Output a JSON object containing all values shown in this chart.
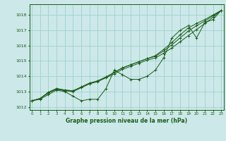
{
  "xlabel": "Graphe pression niveau de la mer (hPa)",
  "bg_color": "#cce8e8",
  "grid_color": "#99cccc",
  "line_color": "#1a5c1a",
  "x_ticks": [
    0,
    1,
    2,
    3,
    4,
    5,
    6,
    7,
    8,
    9,
    10,
    11,
    12,
    13,
    14,
    15,
    16,
    17,
    18,
    19,
    20,
    21,
    22,
    23
  ],
  "y_ticks": [
    1012,
    1013,
    1014,
    1015,
    1016,
    1017,
    1018
  ],
  "ylim": [
    1011.8,
    1018.7
  ],
  "xlim": [
    -0.3,
    23.3
  ],
  "line_wavy": [
    1012.4,
    1012.5,
    1012.8,
    1013.1,
    1013.0,
    1012.7,
    1012.4,
    1012.5,
    1012.5,
    1013.2,
    1014.4,
    1014.1,
    1013.8,
    1013.8,
    1014.0,
    1014.4,
    1015.2,
    1016.5,
    1017.0,
    1017.3,
    1016.5,
    1017.5,
    1017.7,
    1018.3
  ],
  "line_a": [
    1012.4,
    1012.55,
    1012.9,
    1013.15,
    1013.05,
    1013.0,
    1013.25,
    1013.5,
    1013.65,
    1013.9,
    1014.15,
    1014.45,
    1014.65,
    1014.85,
    1015.05,
    1015.2,
    1015.5,
    1015.85,
    1016.25,
    1016.65,
    1017.05,
    1017.45,
    1017.85,
    1018.3
  ],
  "line_b": [
    1012.4,
    1012.55,
    1012.95,
    1013.2,
    1013.1,
    1013.05,
    1013.3,
    1013.55,
    1013.7,
    1013.95,
    1014.25,
    1014.55,
    1014.75,
    1014.95,
    1015.15,
    1015.3,
    1015.65,
    1016.05,
    1016.5,
    1016.95,
    1017.3,
    1017.6,
    1017.95,
    1018.3
  ],
  "line_c": [
    1012.4,
    1012.55,
    1012.95,
    1013.2,
    1013.1,
    1013.05,
    1013.3,
    1013.55,
    1013.7,
    1013.95,
    1014.25,
    1014.55,
    1014.75,
    1014.95,
    1015.15,
    1015.35,
    1015.75,
    1016.2,
    1016.7,
    1017.15,
    1017.45,
    1017.7,
    1018.0,
    1018.3
  ]
}
